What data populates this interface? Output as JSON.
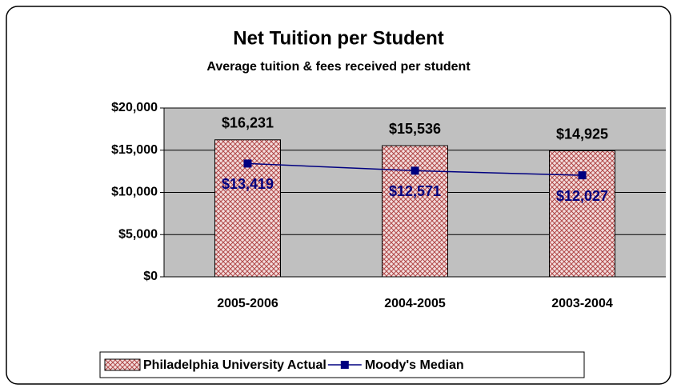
{
  "chart_data": {
    "type": "bar",
    "title": "Net Tuition per Student",
    "subtitle": "Average tuition & fees received per student",
    "categories": [
      "2005-2006",
      "2004-2005",
      "2003-2004"
    ],
    "series": [
      {
        "name": "Philadelphia University Actual",
        "type": "bar",
        "color": "#c08080",
        "values": [
          16231,
          15536,
          14925
        ],
        "value_labels": [
          "$16,231",
          "$15,536",
          "$14,925"
        ]
      },
      {
        "name": "Moody's Median",
        "type": "line",
        "color": "#000080",
        "values": [
          13419,
          12571,
          12027
        ],
        "value_labels": [
          "$13,419",
          "$12,571",
          "$12,027"
        ]
      }
    ],
    "ylim": [
      0,
      20000
    ],
    "yticks": [
      {
        "value": 0,
        "label": "$0"
      },
      {
        "value": 5000,
        "label": "$5,000"
      },
      {
        "value": 10000,
        "label": "$10,000"
      },
      {
        "value": 15000,
        "label": "$15,000"
      },
      {
        "value": 20000,
        "label": "$20,000"
      }
    ],
    "grid": true,
    "legend": "bottom"
  }
}
